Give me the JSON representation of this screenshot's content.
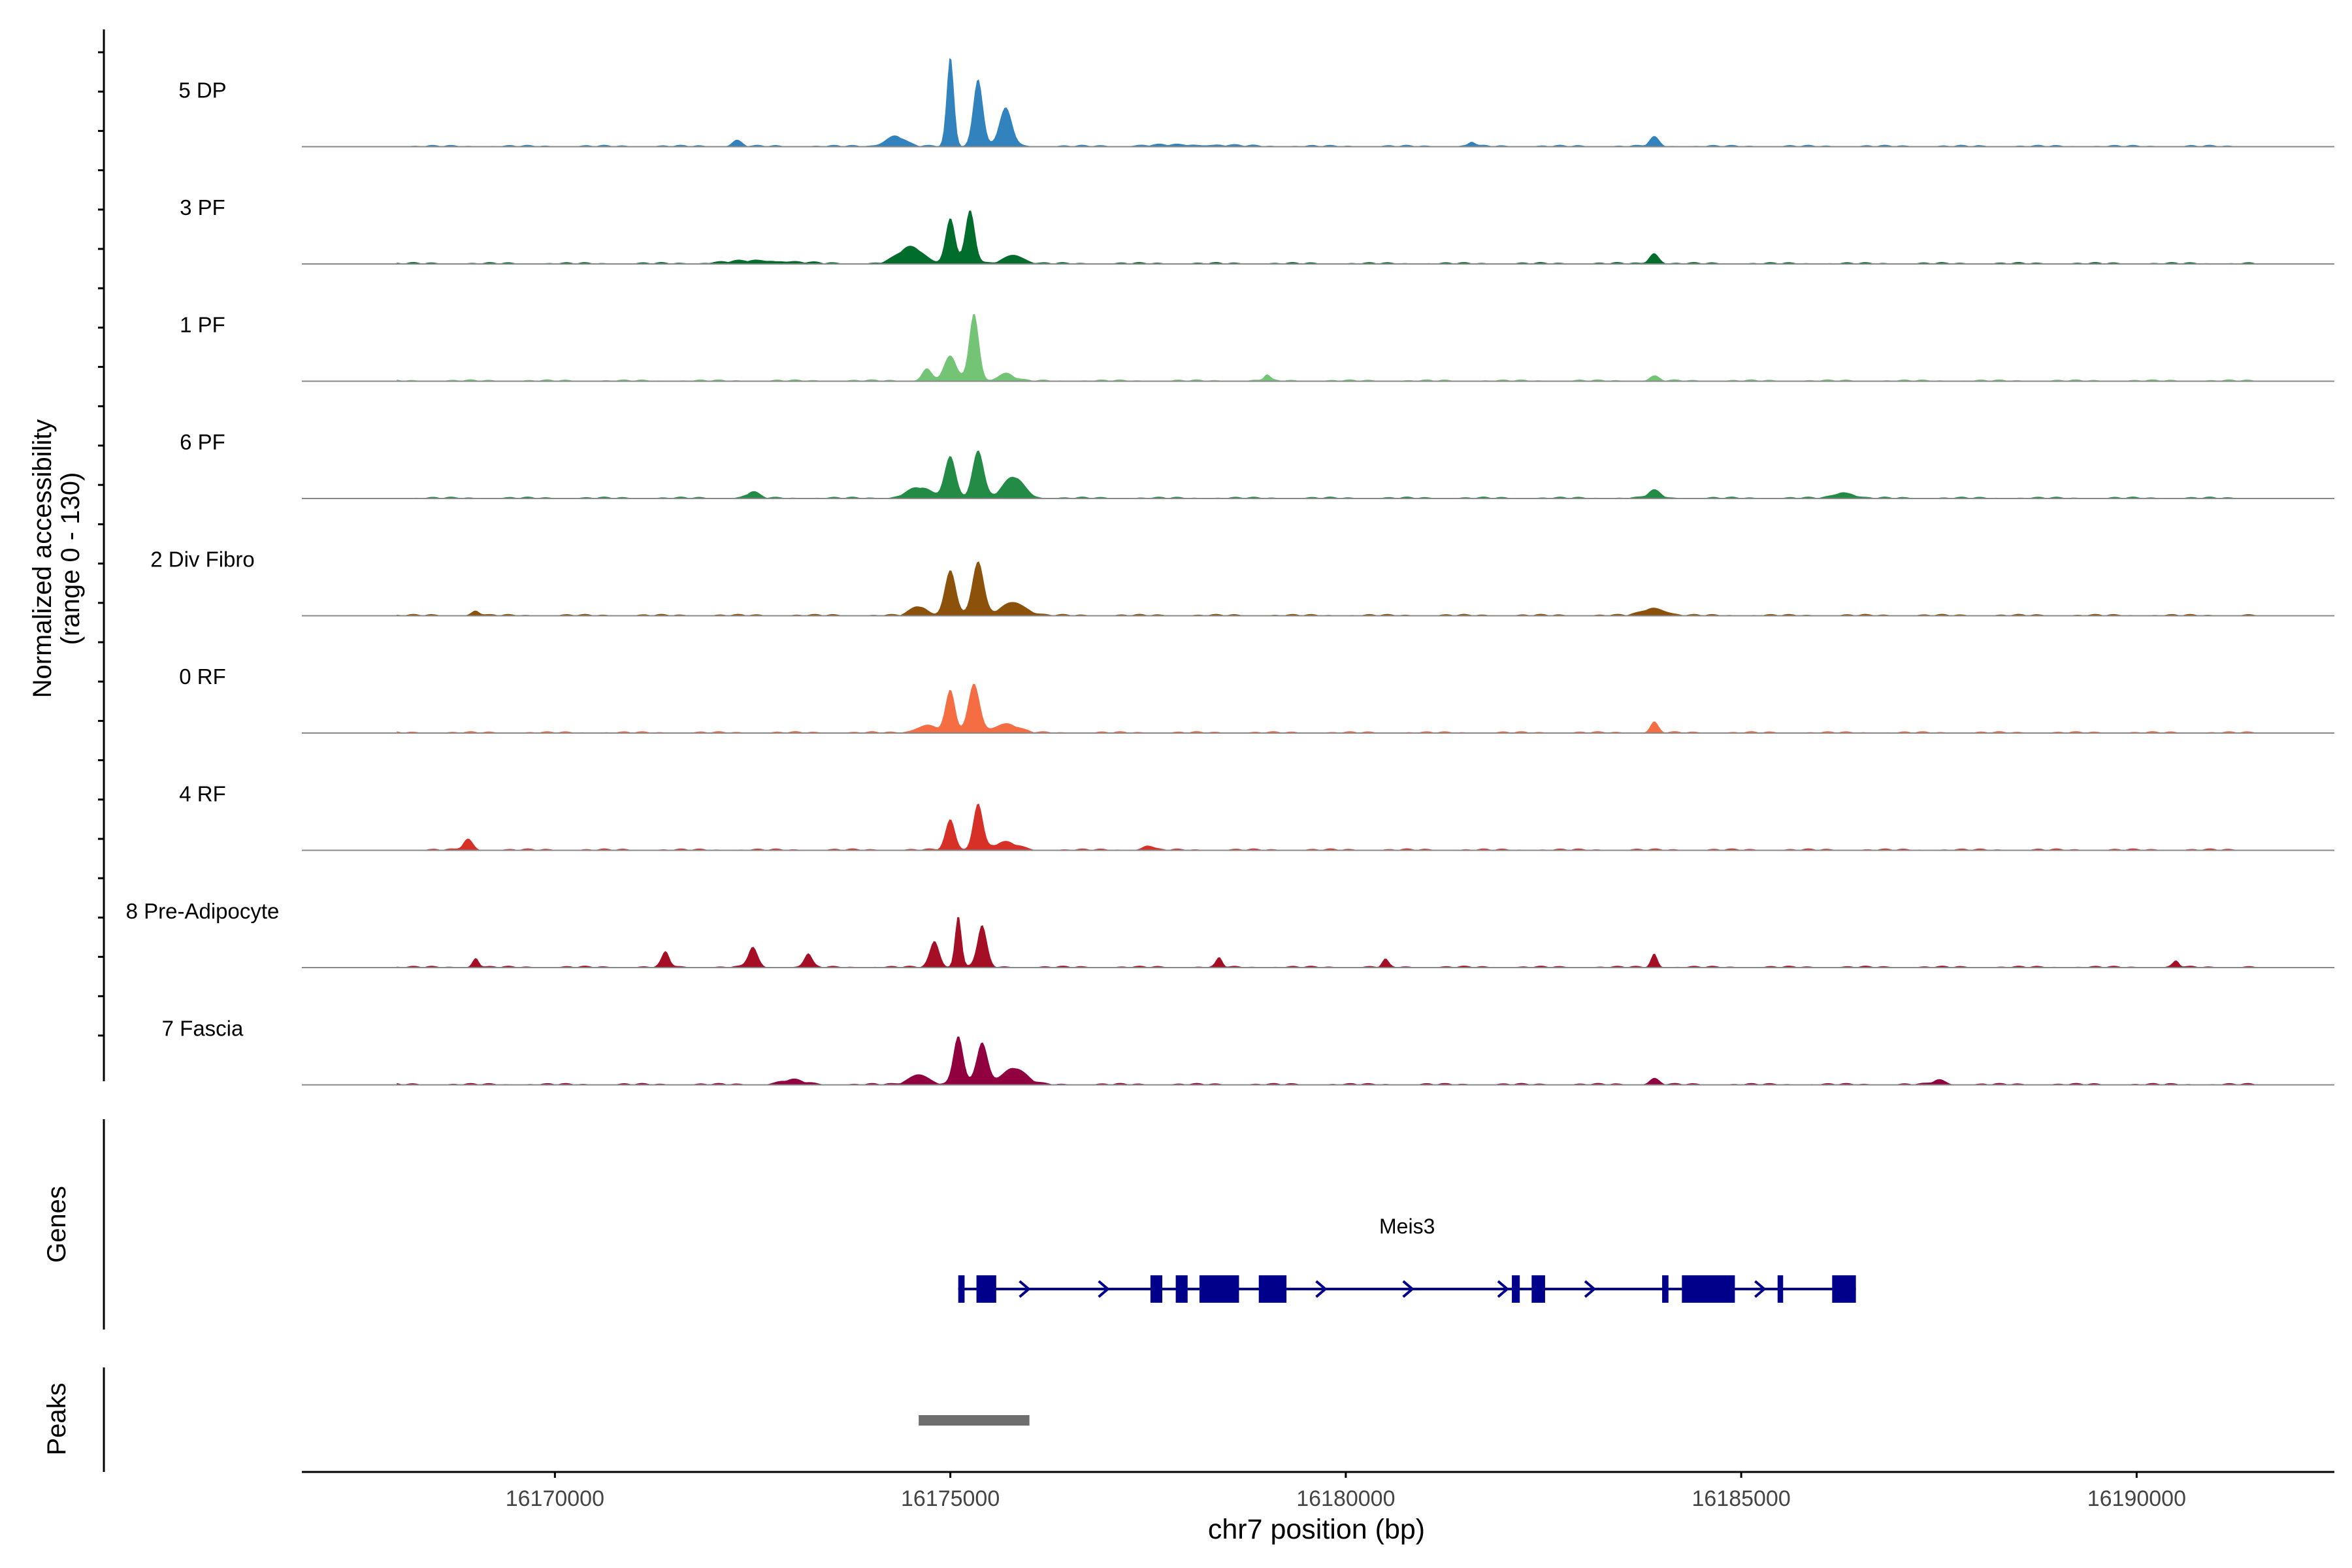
{
  "chart_data": {
    "type": "area",
    "title": "",
    "ylabel_line1": "Normalized accessibility",
    "ylabel_line2": "(range 0 - 130)",
    "yrange": [
      0,
      130
    ],
    "xlabel": "chr7 position (bp)",
    "xlim": [
      16166800,
      16192500
    ],
    "x_ticks": [
      16170000,
      16175000,
      16180000,
      16185000,
      16190000
    ],
    "x_tick_labels": [
      "16170000",
      "16175000",
      "16180000",
      "16185000",
      "16190000"
    ],
    "genes_label": "Genes",
    "peaks_label": "Peaks",
    "tracks": [
      {
        "name": "5 DP",
        "color": "#3182bd",
        "peaks": [
          [
            16175000,
            45,
            120
          ],
          [
            16175350,
            60,
            90
          ],
          [
            16175700,
            80,
            50
          ],
          [
            16174300,
            120,
            14
          ],
          [
            16172300,
            60,
            8
          ],
          [
            16183900,
            60,
            12
          ],
          [
            16181600,
            40,
            6
          ],
          [
            16178000,
            500,
            2
          ]
        ]
      },
      {
        "name": "3 PF",
        "color": "#006d2c",
        "peaks": [
          [
            16175000,
            60,
            60
          ],
          [
            16175250,
            60,
            70
          ],
          [
            16174500,
            160,
            22
          ],
          [
            16175800,
            120,
            12
          ],
          [
            16183900,
            60,
            14
          ],
          [
            16172600,
            400,
            4
          ]
        ]
      },
      {
        "name": "1 PF",
        "color": "#74c476",
        "peaks": [
          [
            16175300,
            60,
            90
          ],
          [
            16175000,
            80,
            32
          ],
          [
            16174700,
            60,
            16
          ],
          [
            16175700,
            100,
            10
          ],
          [
            16179000,
            40,
            8
          ],
          [
            16183900,
            60,
            6
          ]
        ]
      },
      {
        "name": "6 PF",
        "color": "#238b45",
        "peaks": [
          [
            16175000,
            70,
            55
          ],
          [
            16175350,
            70,
            64
          ],
          [
            16175800,
            130,
            28
          ],
          [
            16174600,
            150,
            14
          ],
          [
            16172500,
            80,
            8
          ],
          [
            16183900,
            80,
            10
          ],
          [
            16186300,
            120,
            8
          ]
        ]
      },
      {
        "name": "2 Div Fibro",
        "color": "#8c510a",
        "peaks": [
          [
            16175000,
            70,
            60
          ],
          [
            16175350,
            70,
            72
          ],
          [
            16175800,
            150,
            18
          ],
          [
            16174600,
            100,
            12
          ],
          [
            16183900,
            140,
            10
          ],
          [
            16169000,
            50,
            6
          ]
        ]
      },
      {
        "name": "0 RF",
        "color": "#f46d43",
        "peaks": [
          [
            16175000,
            60,
            55
          ],
          [
            16175300,
            70,
            65
          ],
          [
            16175700,
            150,
            12
          ],
          [
            16174700,
            130,
            10
          ],
          [
            16183900,
            50,
            14
          ]
        ]
      },
      {
        "name": "4 RF",
        "color": "#d73027",
        "peaks": [
          [
            16175000,
            60,
            40
          ],
          [
            16175350,
            60,
            62
          ],
          [
            16175700,
            150,
            10
          ],
          [
            16168900,
            60,
            14
          ],
          [
            16177500,
            60,
            6
          ]
        ]
      },
      {
        "name": "8 Pre-Adipocyte",
        "color": "#a50f26",
        "peaks": [
          [
            16175100,
            40,
            70
          ],
          [
            16175400,
            60,
            55
          ],
          [
            16174800,
            60,
            35
          ],
          [
            16172500,
            60,
            26
          ],
          [
            16171400,
            50,
            20
          ],
          [
            16173200,
            50,
            18
          ],
          [
            16183900,
            40,
            18
          ],
          [
            16169000,
            40,
            12
          ],
          [
            16178400,
            40,
            12
          ],
          [
            16180500,
            40,
            10
          ],
          [
            16190500,
            40,
            8
          ]
        ]
      },
      {
        "name": "7 Fascia",
        "color": "#91003f",
        "peaks": [
          [
            16175100,
            60,
            65
          ],
          [
            16175400,
            70,
            55
          ],
          [
            16175800,
            150,
            22
          ],
          [
            16174600,
            120,
            14
          ],
          [
            16173000,
            150,
            6
          ],
          [
            16183900,
            60,
            8
          ],
          [
            16187500,
            80,
            6
          ]
        ]
      }
    ],
    "gene": {
      "name": "Meis3",
      "start": 16175100,
      "end": 16186450,
      "exons": [
        [
          16175100,
          16175180
        ],
        [
          16175330,
          16175580
        ],
        [
          16177530,
          16177680
        ],
        [
          16177850,
          16178000
        ],
        [
          16178150,
          16178650
        ],
        [
          16178900,
          16179250
        ],
        [
          16182100,
          16182200
        ],
        [
          16182350,
          16182520
        ],
        [
          16184000,
          16184080
        ],
        [
          16184250,
          16184920
        ],
        [
          16185460,
          16185530
        ],
        [
          16186150,
          16186450
        ]
      ],
      "arrows": [
        16175950,
        16176950,
        16179700,
        16180800,
        16182000,
        16183100,
        16185250
      ]
    },
    "peaks_region": [
      [
        16174600,
        16176000
      ]
    ]
  }
}
